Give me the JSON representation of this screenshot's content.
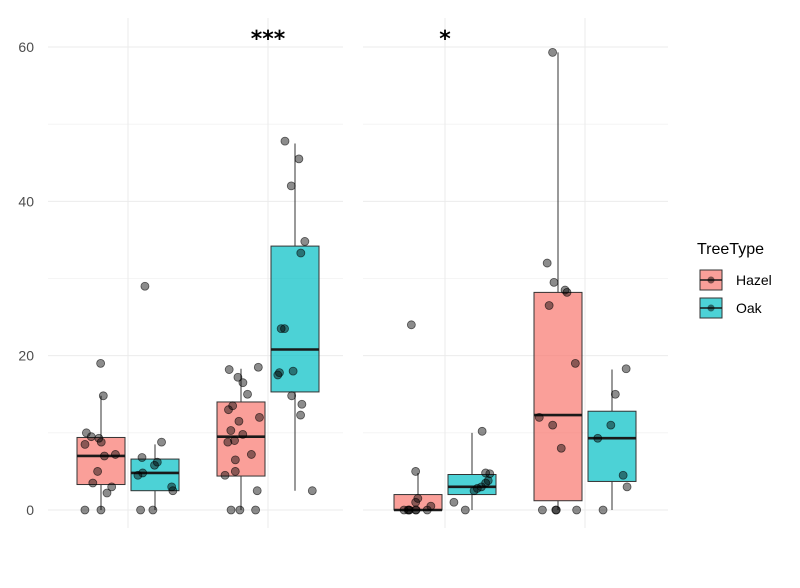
{
  "chart_data": {
    "type": "box",
    "ylim": [
      0,
      60
    ],
    "yticks": [
      0,
      20,
      40,
      60
    ],
    "grid": true,
    "legend": {
      "title": "TreeType",
      "position": "right",
      "entries": [
        {
          "label": "Hazel",
          "color": "#F8766D"
        },
        {
          "label": "Oak",
          "color": "#00BFC4"
        }
      ]
    },
    "panels": [
      {
        "groups": [
          {
            "annotation": "",
            "boxes": [
              {
                "series": "Hazel",
                "q1": 3.3,
                "median": 7.0,
                "q3": 9.4,
                "whisker_low": 0,
                "whisker_high": 14.8,
                "points": [
                  19.0,
                  14.8,
                  10.0,
                  9.5,
                  9.3,
                  8.8,
                  8.5,
                  7.2,
                  7.0,
                  5.0,
                  3.5,
                  3.0,
                  2.2,
                  0,
                  0
                ]
              },
              {
                "series": "Oak",
                "q1": 2.5,
                "median": 4.8,
                "q3": 6.6,
                "whisker_low": 0,
                "whisker_high": 8.5,
                "points": [
                  29.0,
                  8.8,
                  6.8,
                  6.2,
                  5.8,
                  4.8,
                  4.5,
                  3.0,
                  2.5,
                  0,
                  0
                ]
              }
            ]
          },
          {
            "annotation": "***",
            "boxes": [
              {
                "series": "Hazel",
                "q1": 4.4,
                "median": 9.5,
                "q3": 14.0,
                "whisker_low": 0,
                "whisker_high": 18.3,
                "points": [
                  18.5,
                  18.2,
                  17.2,
                  16.5,
                  15.0,
                  13.5,
                  13.0,
                  12.0,
                  11.5,
                  10.3,
                  9.8,
                  9.0,
                  8.8,
                  7.2,
                  6.5,
                  5.0,
                  4.5,
                  2.5,
                  0,
                  0,
                  0
                ]
              },
              {
                "series": "Oak",
                "q1": 15.3,
                "median": 20.8,
                "q3": 34.2,
                "whisker_low": 2.5,
                "whisker_high": 47.5,
                "points": [
                  47.8,
                  45.5,
                  42.0,
                  34.8,
                  33.3,
                  23.5,
                  23.5,
                  18.0,
                  17.8,
                  17.5,
                  14.8,
                  13.7,
                  12.3,
                  2.5
                ]
              }
            ]
          }
        ]
      },
      {
        "groups": [
          {
            "annotation": "*",
            "boxes": [
              {
                "series": "Hazel",
                "q1": 0,
                "median": 0,
                "q3": 2.0,
                "whisker_low": 0,
                "whisker_high": 4.8,
                "points": [
                  24.0,
                  5.0,
                  1.5,
                  1.0,
                  0.5,
                  0,
                  0,
                  0,
                  0,
                  0,
                  0,
                  0
                ]
              },
              {
                "series": "Oak",
                "q1": 2.0,
                "median": 3.0,
                "q3": 4.6,
                "whisker_low": 0,
                "whisker_high": 10.0,
                "points": [
                  10.2,
                  4.8,
                  4.7,
                  3.8,
                  3.5,
                  3.0,
                  2.8,
                  2.5,
                  1.0,
                  0
                ]
              }
            ]
          },
          {
            "annotation": "",
            "boxes": [
              {
                "series": "Hazel",
                "q1": 1.2,
                "median": 12.3,
                "q3": 28.2,
                "whisker_low": 0,
                "whisker_high": 59.3,
                "points": [
                  59.3,
                  32.0,
                  29.5,
                  28.5,
                  28.2,
                  26.5,
                  19.0,
                  12.0,
                  11.0,
                  8.0,
                  0,
                  0,
                  0,
                  0
                ]
              },
              {
                "series": "Oak",
                "q1": 3.7,
                "median": 9.3,
                "q3": 12.8,
                "whisker_low": 0,
                "whisker_high": 18.2,
                "points": [
                  18.3,
                  15.0,
                  11.0,
                  9.3,
                  4.5,
                  3.0,
                  0
                ]
              }
            ]
          }
        ]
      }
    ]
  }
}
